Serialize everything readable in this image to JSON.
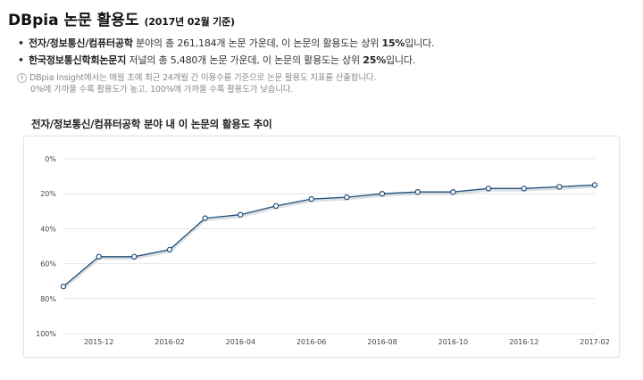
{
  "header": {
    "title": "DBpia 논문 활용도",
    "subtitle": "(2017년 02월 기준)"
  },
  "summary": {
    "items": [
      {
        "bullet": "•",
        "label": "전자/정보통신/컴퓨터공학",
        "text": " 분야의 총 261,184개 논문 가운데, 이 논문의 활용도는 상위 ",
        "value": "15%",
        "suffix": "입니다."
      },
      {
        "bullet": "•",
        "label": "한국정보통신학회논문지",
        "text": " 저널의 총 5,480개 논문 가운데, 이 논문의 활용도는 상위 ",
        "value": "25%",
        "suffix": "입니다."
      }
    ]
  },
  "note": {
    "icon": "info-icon",
    "line1": "DBpia Insight에서는 매월 초에 최근 24개월 간 이용수를 기준으로 논문 활용도 지표를 산출합니다.",
    "line2": "0%에 가까울 수록 활용도가 높고, 100%에 가까울 수록 활용도가 낮습니다."
  },
  "chart_section": {
    "title": "전자/정보통신/컴퓨터공학 분야 내 이 논문의 활용도 추이"
  },
  "colors": {
    "line": "#1f4e79",
    "marker_fill": "#ffffff",
    "shadow": "#9aa7b3",
    "grid": "#e6e6e6"
  },
  "chart_data": {
    "type": "line",
    "title": "",
    "xlabel": "",
    "ylabel": "",
    "y_inverted": true,
    "ylim": [
      0,
      100
    ],
    "y_ticks": [
      "0%",
      "20%",
      "40%",
      "60%",
      "80%",
      "100%"
    ],
    "x_ticks": [
      "2015-12",
      "2016-02",
      "2016-04",
      "2016-06",
      "2016-08",
      "2016-10",
      "2016-12",
      "2017-02"
    ],
    "grid": "horizontal",
    "legend": "none",
    "series": [
      {
        "x": [
          "2015-11",
          "2015-12",
          "2016-01",
          "2016-02",
          "2016-03",
          "2016-04",
          "2016-05",
          "2016-06",
          "2016-07",
          "2016-08",
          "2016-09",
          "2016-10",
          "2016-11",
          "2016-12",
          "2017-01",
          "2017-02"
        ],
        "values": [
          73,
          56,
          56,
          52,
          34,
          32,
          27,
          23,
          22,
          20,
          19,
          19,
          17,
          17,
          16,
          15
        ]
      }
    ]
  }
}
